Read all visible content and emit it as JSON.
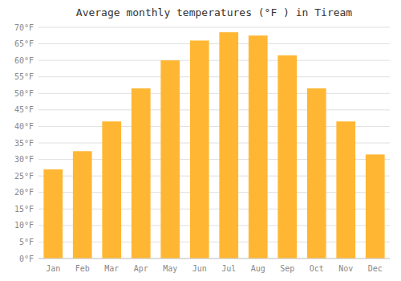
{
  "chart_data": {
    "type": "bar",
    "title": "Average monthly temperatures (°F ) in Tiream",
    "categories": [
      "Jan",
      "Feb",
      "Mar",
      "Apr",
      "May",
      "Jun",
      "Jul",
      "Aug",
      "Sep",
      "Oct",
      "Nov",
      "Dec"
    ],
    "values": [
      27,
      32.5,
      41.5,
      51.5,
      60,
      66,
      68.5,
      67.5,
      61.5,
      51.5,
      41.5,
      31.5
    ],
    "color": "#FFB733",
    "ylim": [
      0,
      70
    ],
    "yticks": [
      {
        "value": 0,
        "label": "0°F"
      },
      {
        "value": 5,
        "label": "5°F"
      },
      {
        "value": 10,
        "label": "10°F"
      },
      {
        "value": 15,
        "label": "15°F"
      },
      {
        "value": 20,
        "label": "20°F"
      },
      {
        "value": 25,
        "label": "25°F"
      },
      {
        "value": 30,
        "label": "30°F"
      },
      {
        "value": 35,
        "label": "35°F"
      },
      {
        "value": 40,
        "label": "40°F"
      },
      {
        "value": 45,
        "label": "45°F"
      },
      {
        "value": 50,
        "label": "50°F"
      },
      {
        "value": 55,
        "label": "55°F"
      },
      {
        "value": 60,
        "label": "60°F"
      },
      {
        "value": 65,
        "label": "65°F"
      },
      {
        "value": 70,
        "label": "70°F"
      }
    ],
    "grid": true
  }
}
